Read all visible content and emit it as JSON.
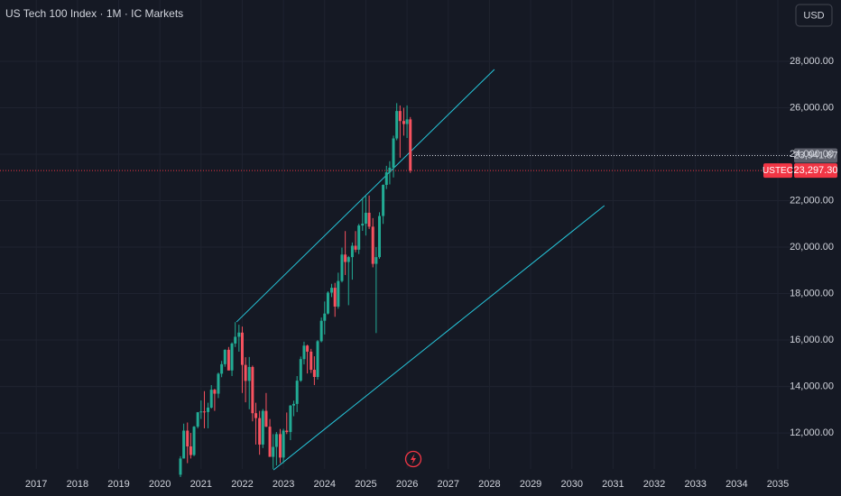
{
  "chart_data": {
    "type": "candlestick",
    "title": "US Tech 100 Index · 1M · IC Markets",
    "currency": "USD",
    "up_color": "#22ab94",
    "down_color": "#f7525f",
    "grid": true,
    "xlim": [
      2016.12,
      2035.35
    ],
    "xticks": [
      2017,
      2018,
      2019,
      2020,
      2021,
      2022,
      2023,
      2024,
      2025,
      2026,
      2027,
      2028,
      2029,
      2030,
      2031,
      2032,
      2033,
      2034,
      2035
    ],
    "ylim": [
      10450,
      30640
    ],
    "yticks": [
      {
        "value": 12000,
        "label": "12,000.00"
      },
      {
        "value": 14000,
        "label": "14,000.00"
      },
      {
        "value": 16000,
        "label": "16,000.00"
      },
      {
        "value": 18000,
        "label": "18,000.00"
      },
      {
        "value": 20000,
        "label": "20,000.00"
      },
      {
        "value": 22000,
        "label": "22,000.00"
      },
      {
        "value": 24000,
        "label": "24,000.00"
      },
      {
        "value": 26000,
        "label": "26,000.00"
      },
      {
        "value": 28000,
        "label": "28,000.00"
      }
    ],
    "x": [
      2020.5,
      2020.58,
      2020.67,
      2020.75,
      2020.83,
      2020.92,
      2021.0,
      2021.08,
      2021.17,
      2021.25,
      2021.33,
      2021.42,
      2021.5,
      2021.58,
      2021.67,
      2021.75,
      2021.83,
      2021.92,
      2022.0,
      2022.08,
      2022.17,
      2022.25,
      2022.33,
      2022.42,
      2022.5,
      2022.58,
      2022.67,
      2022.75,
      2022.83,
      2022.92,
      2023.0,
      2023.08,
      2023.17,
      2023.25,
      2023.33,
      2023.42,
      2023.5,
      2023.58,
      2023.67,
      2023.75,
      2023.83,
      2023.92,
      2024.0,
      2024.08,
      2024.17,
      2024.25,
      2024.33,
      2024.42,
      2024.5,
      2024.58,
      2024.67,
      2024.75,
      2024.83,
      2024.92,
      2025.0,
      2025.08,
      2025.17,
      2025.25,
      2025.33,
      2025.42,
      2025.5,
      2025.58,
      2025.67,
      2025.75,
      2025.83,
      2025.92,
      2026.0,
      2026.08
    ],
    "open": [
      10200,
      10900,
      12100,
      11420,
      11050,
      12270,
      12890,
      12925,
      12900,
      13090,
      13860,
      13690,
      14550,
      14960,
      15580,
      14690,
      15850,
      16140,
      16320,
      14930,
      14240,
      14840,
      12850,
      12640,
      11500,
      12950,
      12270,
      10970,
      11400,
      11950,
      10940,
      12100,
      12040,
      13180,
      13250,
      14250,
      15180,
      15760,
      15500,
      14720,
      14410,
      15950,
      16830,
      17140,
      18040,
      18250,
      17440,
      18540,
      19680,
      19360,
      19570,
      20060,
      19890,
      20930,
      21010,
      21480,
      20880,
      19280,
      19570,
      21340,
      22680,
      23220,
      23420,
      24680,
      25860,
      25430,
      25300,
      25500
    ],
    "high": [
      11000,
      12400,
      12450,
      12000,
      12300,
      12900,
      13400,
      13800,
      13300,
      14060,
      13900,
      14600,
      15100,
      15600,
      15700,
      15900,
      16770,
      16660,
      16580,
      15260,
      15270,
      14900,
      13300,
      12950,
      13030,
      13720,
      12600,
      11950,
      12040,
      12170,
      12180,
      12880,
      13200,
      13390,
      14450,
      15290,
      15930,
      15800,
      15620,
      15300,
      16000,
      16970,
      17660,
      18100,
      18420,
      18460,
      18900,
      19980,
      20690,
      19620,
      20200,
      20690,
      21000,
      22130,
      22200,
      22220,
      21250,
      20000,
      21500,
      22700,
      23500,
      23700,
      24800,
      26200,
      26100,
      26000,
      26100,
      25600
    ],
    "low": [
      10100,
      10900,
      10700,
      10900,
      11000,
      12200,
      12600,
      12200,
      12200,
      13050,
      12950,
      13500,
      14400,
      14850,
      14700,
      14450,
      15700,
      15500,
      13720,
      13320,
      13020,
      12500,
      11500,
      11060,
      11350,
      12250,
      10980,
      10440,
      10600,
      10700,
      10700,
      11950,
      11690,
      12720,
      12900,
      14200,
      14950,
      14560,
      14580,
      14060,
      14300,
      15900,
      16240,
      17100,
      17850,
      17000,
      17350,
      18480,
      18800,
      17500,
      18600,
      19780,
      19700,
      20700,
      20500,
      20780,
      19130,
      16300,
      19500,
      21000,
      22500,
      22700,
      23000,
      24600,
      23850,
      24800,
      24700,
      23200
    ],
    "close": [
      10900,
      12100,
      11420,
      11050,
      12270,
      12890,
      12925,
      12900,
      13090,
      13860,
      13690,
      14550,
      14960,
      15580,
      14690,
      15850,
      16140,
      16320,
      14930,
      14240,
      14840,
      12850,
      12640,
      11500,
      12950,
      12270,
      10970,
      11400,
      11950,
      10940,
      12100,
      12040,
      13180,
      13250,
      14250,
      15180,
      15760,
      15500,
      14720,
      14410,
      15950,
      16830,
      17140,
      18040,
      18250,
      17440,
      18540,
      19680,
      19360,
      19570,
      20060,
      19890,
      20930,
      21010,
      21480,
      20880,
      19280,
      19570,
      21340,
      22680,
      23220,
      23420,
      24680,
      25860,
      25430,
      25300,
      25500,
      23297.3
    ],
    "trend_lines": [
      {
        "color": "#26c6da",
        "x": [
          2021.86,
          2028.12
        ],
        "y": [
          16777,
          27650
        ]
      },
      {
        "color": "#26c6da",
        "x": [
          2022.76,
          2030.79
        ],
        "y": [
          10408,
          21786
        ]
      }
    ],
    "horizontal_line": {
      "color": "#d1d4dc",
      "value": 23941.87,
      "label": "23,941.87"
    },
    "price_line": {
      "name": "USTEC",
      "color": "#f23645",
      "value": 23297.3,
      "label": "23,297.30"
    }
  }
}
